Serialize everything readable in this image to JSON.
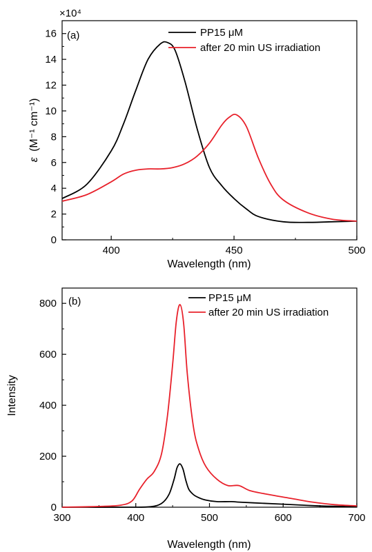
{
  "chart_data": [
    {
      "type": "line",
      "panel_label": "(a)",
      "xlabel": "Wavelength (nm)",
      "ylabel_sym": "ε",
      "ylabel_units": "(M⁻¹ cm⁻¹)",
      "y_multiplier": "×10⁴",
      "xlim": [
        380,
        500
      ],
      "ylim": [
        0,
        17
      ],
      "x_ticks": [
        400,
        450,
        500
      ],
      "y_ticks": [
        0,
        2,
        4,
        6,
        8,
        10,
        12,
        14,
        16
      ],
      "legend_position": "top-right",
      "series": [
        {
          "name": "PP15 μM",
          "color": "#000000",
          "x": [
            380,
            390,
            400,
            405,
            410,
            415,
            420,
            423,
            426,
            430,
            435,
            440,
            445,
            450,
            455,
            460,
            470,
            480,
            490,
            500
          ],
          "y": [
            3.2,
            4.3,
            6.9,
            9.0,
            11.6,
            14.0,
            15.2,
            15.3,
            14.7,
            12.3,
            8.6,
            5.6,
            4.2,
            3.2,
            2.4,
            1.8,
            1.4,
            1.35,
            1.4,
            1.45
          ]
        },
        {
          "name": "after 20 min US irradiation",
          "color": "#e8202a",
          "x": [
            380,
            390,
            400,
            405,
            410,
            415,
            420,
            425,
            430,
            435,
            440,
            445,
            448,
            451,
            455,
            460,
            465,
            470,
            480,
            490,
            500
          ],
          "y": [
            3.0,
            3.5,
            4.5,
            5.1,
            5.4,
            5.5,
            5.5,
            5.6,
            5.9,
            6.5,
            7.5,
            8.9,
            9.5,
            9.7,
            8.8,
            6.3,
            4.3,
            3.1,
            2.1,
            1.6,
            1.45
          ]
        }
      ]
    },
    {
      "type": "line",
      "panel_label": "(b)",
      "xlabel": "Wavelength (nm)",
      "ylabel": "Intensity",
      "xlim": [
        300,
        700
      ],
      "ylim": [
        0,
        860
      ],
      "x_ticks": [
        300,
        400,
        500,
        600,
        700
      ],
      "y_ticks": [
        0,
        200,
        400,
        600,
        800
      ],
      "legend_position": "top-right",
      "series": [
        {
          "name": "PP15 μM",
          "color": "#000000",
          "x": [
            300,
            390,
            420,
            435,
            445,
            452,
            456,
            460,
            464,
            468,
            472,
            478,
            485,
            495,
            510,
            530,
            540,
            560,
            600,
            650,
            700
          ],
          "y": [
            0,
            0,
            2,
            15,
            50,
            110,
            155,
            170,
            150,
            105,
            70,
            50,
            38,
            28,
            22,
            22,
            20,
            17,
            12,
            5,
            2
          ]
        },
        {
          "name": "after 20 min US irradiation",
          "color": "#e8202a",
          "x": [
            300,
            350,
            380,
            395,
            405,
            415,
            425,
            435,
            443,
            450,
            455,
            460,
            465,
            470,
            478,
            485,
            495,
            510,
            525,
            540,
            555,
            580,
            610,
            640,
            670,
            700
          ],
          "y": [
            0,
            3,
            8,
            25,
            70,
            110,
            140,
            210,
            360,
            560,
            730,
            795,
            720,
            520,
            320,
            230,
            160,
            110,
            85,
            85,
            65,
            50,
            35,
            20,
            10,
            5
          ]
        }
      ]
    }
  ]
}
